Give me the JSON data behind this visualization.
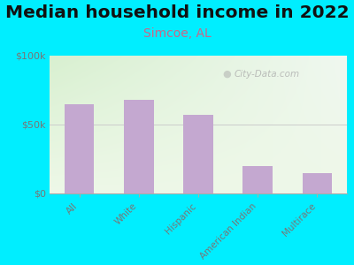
{
  "title": "Median household income in 2022",
  "subtitle": "Simcoe, AL",
  "categories": [
    "All",
    "White",
    "Hispanic",
    "American Indian",
    "Multirace"
  ],
  "values": [
    65000,
    68000,
    57000,
    20000,
    15000
  ],
  "bar_color": "#c4a8d0",
  "background_outer": "#00eeff",
  "ylim": [
    0,
    100000
  ],
  "ytick_values": [
    0,
    50000,
    100000
  ],
  "ytick_labels": [
    "$0",
    "$50k",
    "$100k"
  ],
  "title_fontsize": 14.5,
  "subtitle_fontsize": 10,
  "watermark": "City-Data.com",
  "bar_width": 0.5,
  "gradient_top_left": "#d8f0d0",
  "gradient_top_right": "#f0f8f0",
  "gradient_bottom": "#eef8e8",
  "tick_color": "#777777",
  "subtitle_color": "#cc6688"
}
